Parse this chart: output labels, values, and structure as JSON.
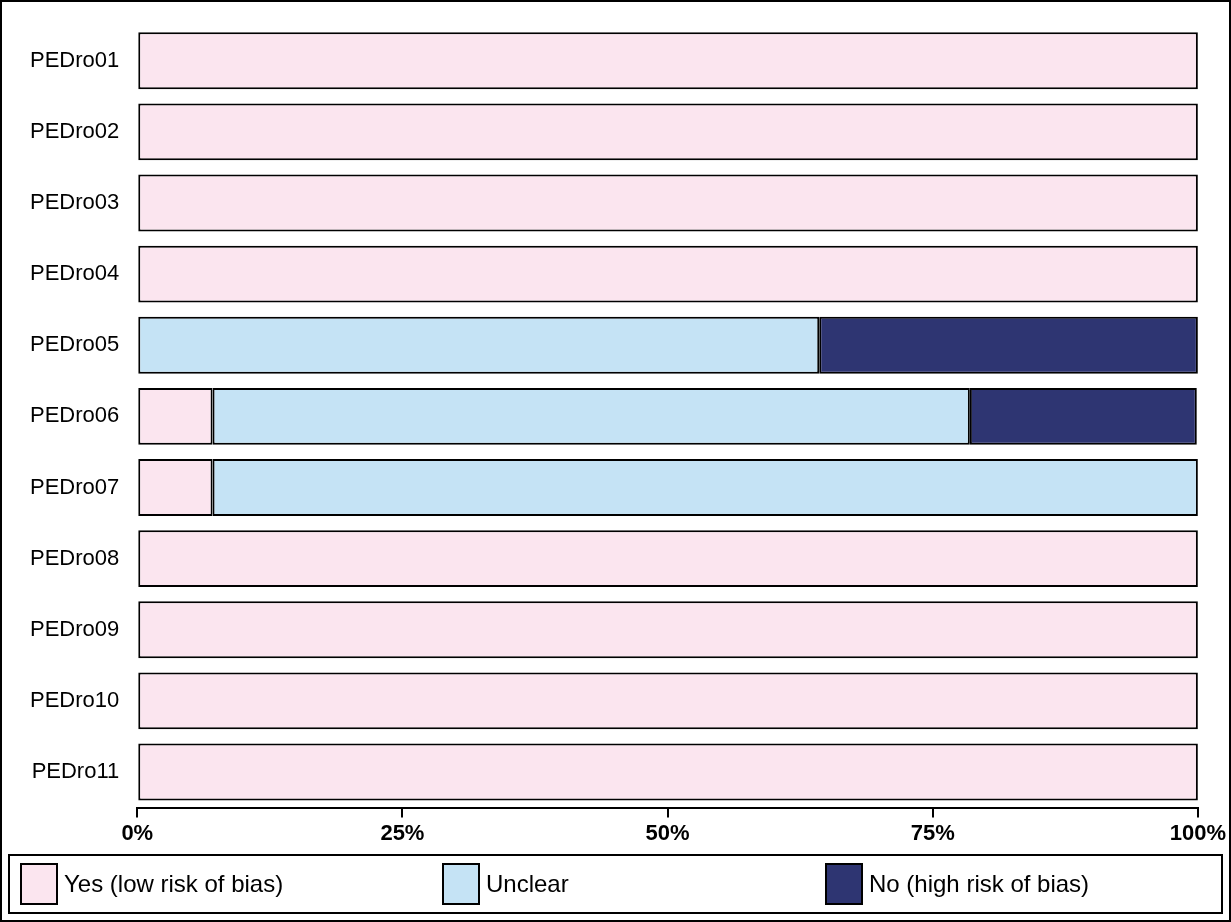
{
  "chart_data": {
    "type": "bar",
    "orientation": "horizontal",
    "stacked": true,
    "categories": [
      "PEDro01",
      "PEDro02",
      "PEDro03",
      "PEDro04",
      "PEDro05",
      "PEDro06",
      "PEDro07",
      "PEDro08",
      "PEDro09",
      "PEDro10",
      "PEDro11"
    ],
    "series": [
      {
        "name": "Yes (low risk of bias)",
        "color": "#fbe5ef",
        "values": [
          100,
          100,
          100,
          100,
          null,
          7.1,
          7.1,
          100,
          100,
          100,
          100
        ]
      },
      {
        "name": "Unclear",
        "color": "#c5e3f5",
        "values": [
          null,
          null,
          null,
          null,
          64.3,
          71.4,
          92.9,
          null,
          null,
          null,
          null
        ]
      },
      {
        "name": "No (high risk of bias)",
        "color": "#2e3572",
        "values": [
          null,
          null,
          null,
          null,
          35.7,
          21.4,
          null,
          null,
          null,
          null,
          null
        ]
      }
    ],
    "xlim": [
      0,
      100
    ],
    "xticks": [
      {
        "value": 0,
        "label": "0%"
      },
      {
        "value": 25,
        "label": "25%"
      },
      {
        "value": 50,
        "label": "50%"
      },
      {
        "value": 75,
        "label": "75%"
      },
      {
        "value": 100,
        "label": "100%"
      }
    ],
    "grid": false,
    "legend": "bottom"
  }
}
